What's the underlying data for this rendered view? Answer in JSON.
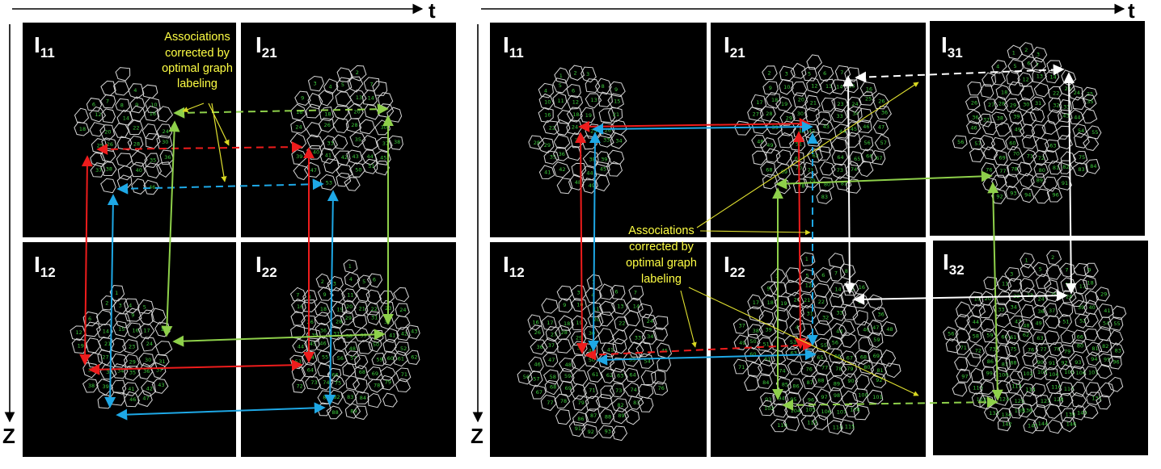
{
  "axes": {
    "time_label": "t",
    "depth_label": "Z"
  },
  "panels": [
    {
      "id": "left",
      "tiles": [
        {
          "main": "I",
          "sub": "11"
        },
        {
          "main": "I",
          "sub": "21"
        },
        {
          "main": "I",
          "sub": "12"
        },
        {
          "main": "I",
          "sub": "22"
        }
      ],
      "annotation": [
        "Associations",
        "corrected  by",
        "optimal graph",
        "labeling"
      ]
    },
    {
      "id": "right",
      "tiles": [
        {
          "main": "I",
          "sub": "11"
        },
        {
          "main": "I",
          "sub": "21"
        },
        {
          "main": "I",
          "sub": "31"
        },
        {
          "main": "I",
          "sub": "12"
        },
        {
          "main": "I",
          "sub": "22"
        },
        {
          "main": "I",
          "sub": "32"
        }
      ],
      "annotation": [
        "Associations",
        "corrected  by",
        "optimal graph",
        "labeling"
      ]
    }
  ],
  "colors": {
    "background_tile": "#000000",
    "cell_outline": "#d8d8d8",
    "cell_number": "#3dcc3d",
    "red_link": "#ee1c1c",
    "blue_link": "#1ea8e6",
    "green_link": "#8ed04a",
    "white_link": "#ffffff",
    "annotation_text": "#ffff44"
  }
}
